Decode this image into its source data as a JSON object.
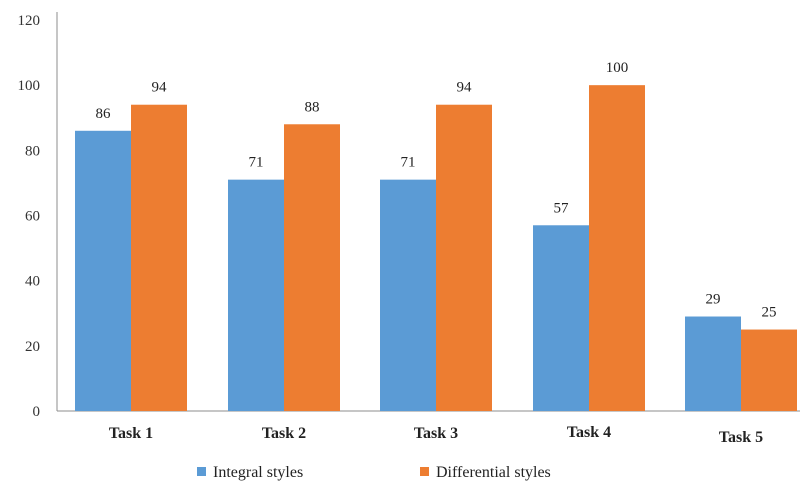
{
  "chart_data": {
    "type": "bar",
    "categories": [
      "Task 1",
      "Task 2",
      "Task 3",
      "Task 4",
      "Task 5"
    ],
    "series": [
      {
        "name": "Integral styles",
        "values": [
          86,
          71,
          71,
          57,
          29
        ],
        "color": "#5b9bd5"
      },
      {
        "name": "Differential styles",
        "values": [
          94,
          88,
          94,
          100,
          25
        ],
        "color": "#ed7d31"
      }
    ],
    "title": "",
    "xlabel": "",
    "ylabel": "",
    "ylim": [
      0,
      120
    ],
    "yticks": [
      "0",
      "20",
      "40",
      "60",
      "80",
      "100",
      "120"
    ],
    "grid": false,
    "legend_position": "bottom"
  }
}
